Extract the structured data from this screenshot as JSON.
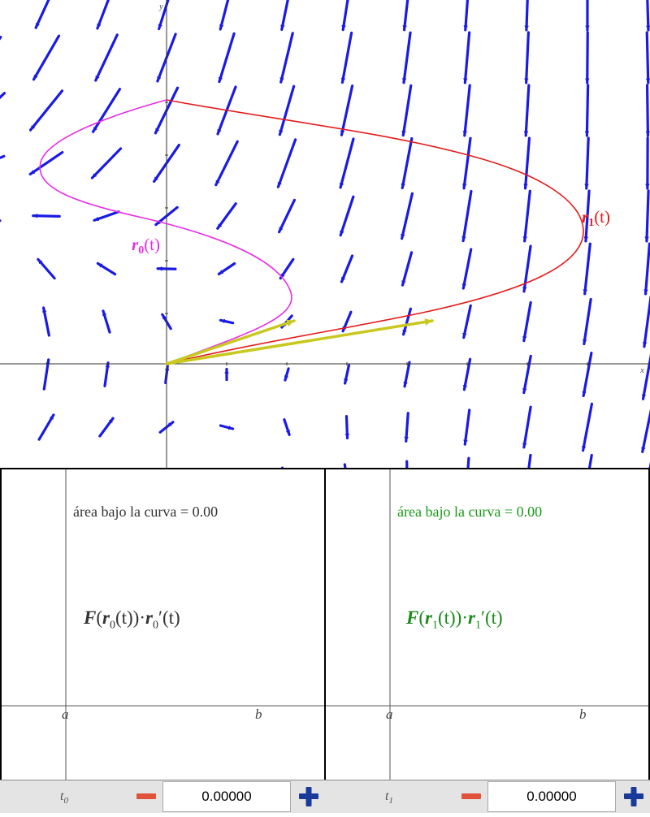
{
  "main_plot": {
    "x_axis_label": "x",
    "y_axis_label": "y",
    "curve_r0_label": {
      "letter": "r",
      "sub": "0",
      "arg": "(t)"
    },
    "curve_r1_label": {
      "letter": "r",
      "sub": "1",
      "arg": "(t)"
    },
    "colors": {
      "field": "#1a1ae6",
      "curve_r0": "#e62ee6",
      "curve_r1": "#e61a1a",
      "tangent": "#c8c81e"
    }
  },
  "panels": {
    "left": {
      "area_label": "área bajo la curva = 0.00",
      "area_color": "#333333",
      "formula": {
        "F": "F",
        "open": "(",
        "r": "r",
        "sub": "0",
        "mid": "(t))·",
        "r2": "r",
        "sub2": "0",
        "tail": "′(t)"
      },
      "formula_color": "#333333",
      "tick_a": "a",
      "tick_b": "b"
    },
    "right": {
      "area_label": "área bajo la curva = 0.00",
      "area_color": "#1a9a1a",
      "formula": {
        "F": "F",
        "open": "(",
        "r": "r",
        "sub": "1",
        "mid": "(t))·",
        "r2": "r",
        "sub2": "1",
        "tail": "′(t)"
      },
      "formula_color": "#1a8a1a",
      "tick_a": "a",
      "tick_b": "b"
    }
  },
  "controls": {
    "t0": {
      "label": "t",
      "sub": "0",
      "value": "0.00000"
    },
    "t1": {
      "label": "t",
      "sub": "1",
      "value": "0.00000"
    },
    "minus_color": "#e0533a",
    "plus_color": "#1a3a9a"
  }
}
